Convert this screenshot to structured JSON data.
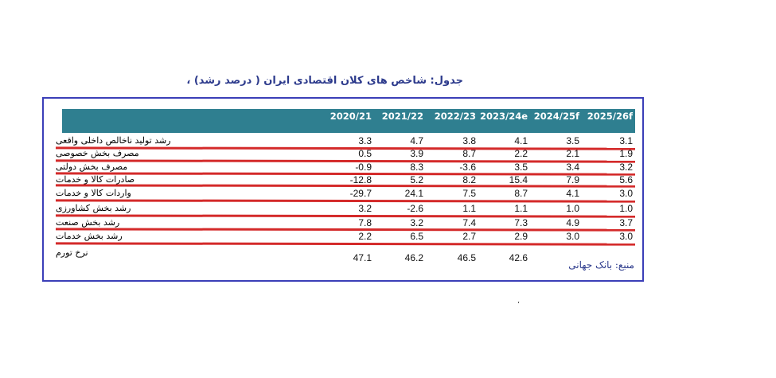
{
  "title": "جدول: شاخص های کلان اقتصادی ایران ( درصد رشد) ،",
  "columns": [
    "2020/21",
    "2021/22",
    "2022/23",
    "2023/24e",
    "2024/25f",
    "2025/26f"
  ],
  "rows": [
    {
      "label": "رشد تولید ناخالص داخلی واقعی",
      "values": [
        "3.3",
        "4.7",
        "3.8",
        "4.1",
        "3.5",
        "3.1"
      ]
    },
    {
      "label": "مصرف بخش خصوصی",
      "values": [
        "0.5",
        "3.9",
        "8.7",
        "2.2",
        "2.1",
        "1.9"
      ]
    },
    {
      "label": "مصرف بخش دولتی",
      "values": [
        "-0.9",
        "8.3",
        "-3.6",
        "3.5",
        "3.4",
        "3.2"
      ]
    },
    {
      "label": "صادرات کالا و خدمات",
      "values": [
        "-12.8",
        "5.2",
        "8.2",
        "15.4",
        "7.9",
        "5.6"
      ]
    },
    {
      "label": "واردات کالا و خدمات",
      "values": [
        "-29.7",
        "24.1",
        "7.5",
        "8.7",
        "4.1",
        "3.0"
      ]
    },
    {
      "label": "رشد بخش کشاورزی",
      "values": [
        "3.2",
        "-2.6",
        "1.1",
        "1.1",
        "1.0",
        "1.0"
      ]
    },
    {
      "label": "رشد بخش صنعت",
      "values": [
        "7.8",
        "3.2",
        "7.4",
        "7.3",
        "4.9",
        "3.7"
      ]
    },
    {
      "label": "رشد بخش خدمات",
      "values": [
        "2.2",
        "6.5",
        "2.7",
        "2.9",
        "3.0",
        "3.0"
      ]
    },
    {
      "label": "نرخ تورم",
      "values": [
        "47.1",
        "46.2",
        "46.5",
        "42.6",
        "",
        ""
      ]
    }
  ],
  "source": "منبع: بانک جهانی",
  "stray_mark": "،",
  "colors": {
    "header": "#2f7f90",
    "border": "#3b3fb8",
    "underline": "#d42a2a",
    "title": "#2c3a8c"
  }
}
